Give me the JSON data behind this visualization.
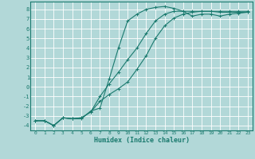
{
  "xlabel": "Humidex (Indice chaleur)",
  "background_color": "#b2d8d8",
  "grid_color": "#ffffff",
  "line_color": "#1a7a6e",
  "xlim": [
    -0.5,
    23.5
  ],
  "ylim": [
    -4.5,
    8.8
  ],
  "xticks": [
    0,
    1,
    2,
    3,
    4,
    5,
    6,
    7,
    8,
    9,
    10,
    11,
    12,
    13,
    14,
    15,
    16,
    17,
    18,
    19,
    20,
    21,
    22,
    23
  ],
  "yticks": [
    -4,
    -3,
    -2,
    -1,
    0,
    1,
    2,
    3,
    4,
    5,
    6,
    7,
    8
  ],
  "line1_x": [
    0,
    1,
    2,
    3,
    4,
    5,
    6,
    7,
    8,
    9,
    10,
    11,
    12,
    13,
    14,
    15,
    16,
    17,
    18,
    19,
    20,
    21,
    22,
    23
  ],
  "line1_y": [
    -3.5,
    -3.5,
    -4.0,
    -3.2,
    -3.3,
    -3.3,
    -2.5,
    -2.2,
    0.8,
    4.0,
    6.8,
    7.5,
    8.0,
    8.2,
    8.3,
    8.1,
    7.8,
    7.3,
    7.5,
    7.5,
    7.3,
    7.5,
    7.6,
    7.7
  ],
  "line2_x": [
    0,
    1,
    2,
    3,
    4,
    5,
    6,
    7,
    8,
    9,
    10,
    11,
    12,
    13,
    14,
    15,
    16,
    17,
    18,
    19,
    20,
    21,
    22,
    23
  ],
  "line2_y": [
    -3.5,
    -3.5,
    -4.0,
    -3.2,
    -3.3,
    -3.2,
    -2.6,
    -1.5,
    -0.8,
    -0.2,
    0.5,
    1.8,
    3.2,
    5.0,
    6.3,
    7.1,
    7.5,
    7.7,
    7.8,
    7.8,
    7.7,
    7.7,
    7.7,
    7.7
  ],
  "line3_x": [
    0,
    1,
    2,
    3,
    4,
    5,
    6,
    7,
    8,
    9,
    10,
    11,
    12,
    13,
    14,
    15,
    16,
    17,
    18,
    19,
    20,
    21,
    22,
    23
  ],
  "line3_y": [
    -3.5,
    -3.5,
    -4.0,
    -3.2,
    -3.3,
    -3.2,
    -2.6,
    -1.0,
    0.3,
    1.5,
    2.8,
    4.0,
    5.5,
    6.8,
    7.5,
    7.8,
    7.8,
    7.8,
    7.8,
    7.8,
    7.8,
    7.8,
    7.8,
    7.8
  ]
}
